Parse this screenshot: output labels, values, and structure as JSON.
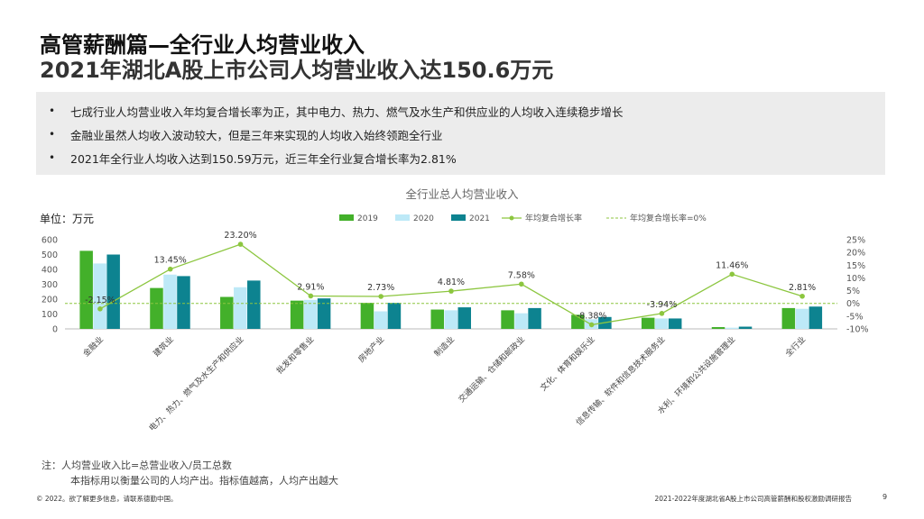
{
  "page": {
    "title_line1": "高管薪酬篇—全行业人均营业收入",
    "title_line2": "2021年湖北A股上市公司人均营业收入达150.6万元",
    "bullets": [
      "七成行业人均营业收入年均复合增长率为正，其中电力、热力、燃气及水生产和供应业的人均收入连续稳步增长",
      "金融业虽然人均收入波动较大，但是三年来实现的人均收入始终领跑全行业",
      "2021年全行业人均收入达到150.59万元，近三年全行业复合增长率为2.81%"
    ],
    "note_line1": "注：人均营业收入比=总营业收入/员工总数",
    "note_line2": "本指标用以衡量公司的人均产出。指标值越高，人均产出越大",
    "footer_left": "© 2022。欲了解更多信息，请联系德勤中国。",
    "footer_right": "2021-2022年度湖北省A股上市公司高管薪酬和股权激励调研报告",
    "page_number": "9"
  },
  "chart_data": {
    "type": "bar",
    "title": "全行业总人均营业收入",
    "unit_label": "单位：万元",
    "categories": [
      "金融业",
      "建筑业",
      "电力、热力、燃气及水生产和供应业",
      "批发和零售业",
      "房地产业",
      "制造业",
      "交通运输、仓储和邮政业",
      "文化、体育和娱乐业",
      "信息传输、软件和信息技术服务业",
      "水利、环境和公共设施管理业",
      "全行业"
    ],
    "series": [
      {
        "name": "2019",
        "values": [
          525,
          275,
          215,
          190,
          175,
          130,
          125,
          95,
          75,
          12,
          140
        ],
        "color": "#43b02a"
      },
      {
        "name": "2020",
        "values": [
          440,
          365,
          280,
          195,
          118,
          125,
          105,
          65,
          70,
          8,
          135
        ],
        "color": "#bde9f7"
      },
      {
        "name": "2021",
        "values": [
          500,
          355,
          325,
          205,
          175,
          145,
          140,
          80,
          70,
          15,
          150
        ],
        "color": "#0d8390"
      }
    ],
    "growth": {
      "name": "年均复合增长率",
      "values": [
        -2.15,
        13.45,
        23.2,
        2.91,
        2.73,
        4.81,
        7.58,
        -8.38,
        -3.94,
        11.46,
        2.81
      ],
      "labels": [
        "-2.15%",
        "13.45%",
        "23.20%",
        "2.91%",
        "2.73%",
        "4.81%",
        "7.58%",
        "-8.38%",
        "-3.94%",
        "11.46%",
        "2.81%"
      ],
      "color": "#8cc63f"
    },
    "baseline": {
      "name": "年均复合增长率=0%",
      "value": 0,
      "color": "#8cc63f"
    },
    "left_axis": {
      "ylim": [
        0,
        600
      ],
      "ticks": [
        "0",
        "100",
        "200",
        "300",
        "400",
        "500",
        "600"
      ]
    },
    "right_axis": {
      "ylim": [
        -10,
        25
      ],
      "ticks": [
        "-10%",
        "-5%",
        "0%",
        "5%",
        "10%",
        "15%",
        "20%",
        "25%"
      ]
    },
    "legend_position": "top"
  }
}
